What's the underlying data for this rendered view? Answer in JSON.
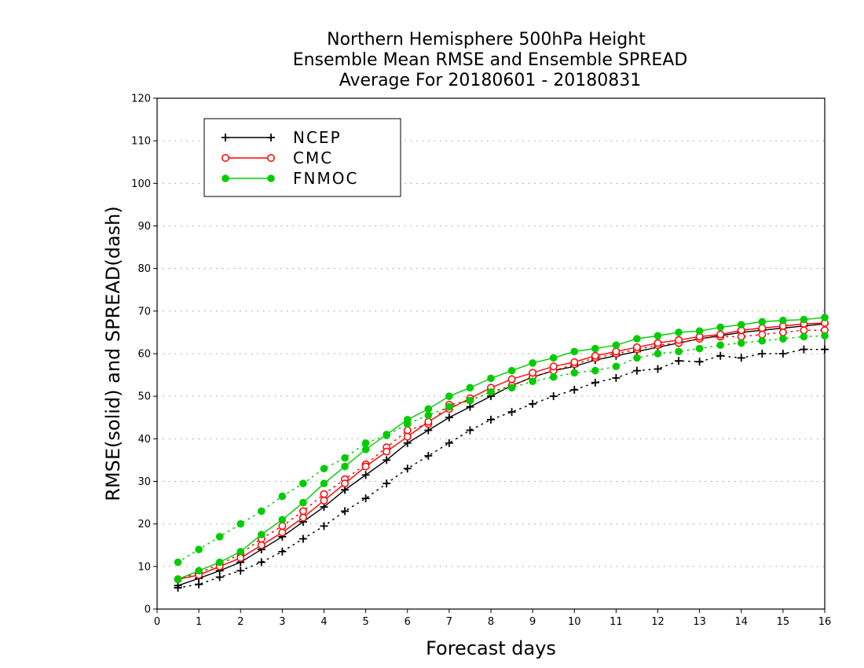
{
  "chart_data": {
    "type": "line",
    "title": [
      "Northern Hemisphere 500hPa Height",
      "Ensemble Mean RMSE and Ensemble SPREAD",
      "Average For 20180601 - 20180831"
    ],
    "xlabel": "Forecast days",
    "ylabel": "RMSE(solid) and SPREAD(dash)",
    "xlim": [
      0,
      16
    ],
    "ylim": [
      0,
      120
    ],
    "xticks": [
      0,
      1,
      2,
      3,
      4,
      5,
      6,
      7,
      8,
      9,
      10,
      11,
      12,
      13,
      14,
      15,
      16
    ],
    "yticks": [
      0,
      10,
      20,
      30,
      40,
      50,
      60,
      70,
      80,
      90,
      100,
      110,
      120
    ],
    "grid": "horizontal-dotted",
    "legend_position": "top-left",
    "series": [
      {
        "name": "NCEP",
        "color": "#000000",
        "marker": "plus",
        "rmse": {
          "x": [
            0.5,
            1,
            1.5,
            2,
            2.5,
            3,
            3.5,
            4,
            4.5,
            5,
            5.5,
            6,
            6.5,
            7,
            7.5,
            8,
            8.5,
            9,
            9.5,
            10,
            10.5,
            11,
            11.5,
            12,
            12.5,
            13,
            13.5,
            14,
            14.5,
            15,
            15.5,
            16
          ],
          "y": [
            5.5,
            7.2,
            9,
            11,
            14,
            17,
            20.5,
            24,
            28,
            31.5,
            35,
            39,
            42,
            45,
            47.5,
            50,
            52.5,
            54.5,
            56,
            57,
            58.5,
            59.5,
            60.5,
            61.5,
            62.5,
            63.5,
            64.2,
            65,
            65.5,
            66,
            66.5,
            67
          ]
        },
        "spread": {
          "x": [
            0.5,
            1,
            1.5,
            2,
            2.5,
            3,
            3.5,
            4,
            4.5,
            5,
            5.5,
            6,
            6.5,
            7,
            7.5,
            8,
            8.5,
            9,
            9.5,
            10,
            10.5,
            11,
            11.5,
            12,
            12.5,
            13,
            13.5,
            14,
            14.5,
            15,
            15.5,
            16
          ],
          "y": [
            5,
            5.8,
            7.5,
            9,
            11,
            13.5,
            16.5,
            19.5,
            23,
            26,
            29.5,
            33,
            36,
            39,
            42,
            44.5,
            46.3,
            48.2,
            50,
            51.5,
            53.2,
            54.3,
            56,
            56.4,
            58.3,
            58.1,
            59.5,
            59,
            60,
            60,
            61,
            61
          ]
        }
      },
      {
        "name": "CMC",
        "color": "#ff0000",
        "marker": "open-circle",
        "rmse": {
          "x": [
            0.5,
            1,
            1.5,
            2,
            2.5,
            3,
            3.5,
            4,
            4.5,
            5,
            5.5,
            6,
            6.5,
            7,
            7.5,
            8,
            8.5,
            9,
            9.5,
            10,
            10.5,
            11,
            11.5,
            12,
            12.5,
            13,
            13.5,
            14,
            14.5,
            15,
            15.5,
            16
          ],
          "y": [
            7,
            8,
            10,
            12,
            15,
            18,
            21.5,
            25.5,
            29.5,
            33.5,
            37,
            40.5,
            44,
            47,
            49.5,
            52,
            54,
            55.5,
            57,
            58,
            59.5,
            60.5,
            61.5,
            62.5,
            63.2,
            64,
            64.5,
            65.5,
            66,
            66.5,
            67,
            67.2
          ]
        },
        "spread": {
          "x": [
            0.5,
            1,
            1.5,
            2,
            2.5,
            3,
            3.5,
            4,
            4.5,
            5,
            5.5,
            6,
            6.5,
            7,
            7.5,
            8,
            8.5,
            9,
            9.5,
            10,
            10.5,
            11,
            11.5,
            12,
            12.5,
            13,
            13.5,
            14,
            14.5,
            15,
            15.5,
            16
          ],
          "y": [
            7,
            8.5,
            10.5,
            13,
            16.5,
            19.5,
            23,
            27,
            30.5,
            34,
            38,
            42,
            43.5,
            48,
            49,
            51,
            52.5,
            54.5,
            56,
            57.5,
            59,
            60,
            61,
            62,
            62.5,
            63.5,
            64,
            64,
            64.5,
            65,
            65.5,
            65.5
          ]
        }
      },
      {
        "name": "FNMOC",
        "color": "#00cc00",
        "marker": "filled-circle",
        "rmse": {
          "x": [
            0.5,
            1,
            1.5,
            2,
            2.5,
            3,
            3.5,
            4,
            4.5,
            5,
            5.5,
            6,
            6.5,
            7,
            7.5,
            8,
            8.5,
            9,
            9.5,
            10,
            10.5,
            11,
            11.5,
            12,
            12.5,
            13,
            13.5,
            14,
            14.5,
            15,
            15.5,
            16
          ],
          "y": [
            7,
            9,
            11,
            13.5,
            17.5,
            21,
            25,
            29.5,
            33.5,
            37.5,
            41,
            44.5,
            47,
            50,
            52,
            54.2,
            56,
            57.8,
            59,
            60.5,
            61.2,
            62,
            63.5,
            64.2,
            65,
            65.3,
            66.2,
            66.8,
            67.5,
            67.8,
            68,
            68.5
          ]
        },
        "spread": {
          "x": [
            0.5,
            1,
            1.5,
            2,
            2.5,
            3,
            3.5,
            4,
            4.5,
            5,
            5.5,
            6,
            6.5,
            7,
            7.5,
            8,
            8.5,
            9,
            9.5,
            10,
            10.5,
            11,
            11.5,
            12,
            12.5,
            13,
            13.5,
            14,
            14.5,
            15,
            15.5,
            16
          ],
          "y": [
            11,
            14,
            17,
            20,
            23,
            26.5,
            29.5,
            33,
            35.5,
            39,
            40.8,
            43.5,
            45.5,
            47.5,
            49,
            51,
            52,
            53.5,
            54.5,
            55.5,
            56,
            57,
            59,
            60,
            60.5,
            61.2,
            62,
            62.5,
            63,
            63.5,
            64,
            64.2
          ]
        }
      }
    ]
  }
}
